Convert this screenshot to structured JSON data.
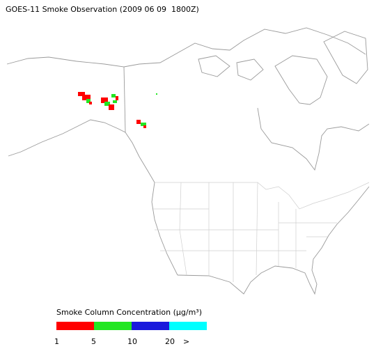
{
  "title": "GOES-11 Smoke Observation (2009 06 09  1800Z)",
  "legend": {
    "title": "Smoke Column Concentration (μg/m³)",
    "colors": [
      "#ff0000",
      "#22e622",
      "#1a1adc",
      "#00ffff"
    ],
    "ticks": [
      "1",
      "5",
      "10",
      "20",
      ">"
    ]
  }
}
